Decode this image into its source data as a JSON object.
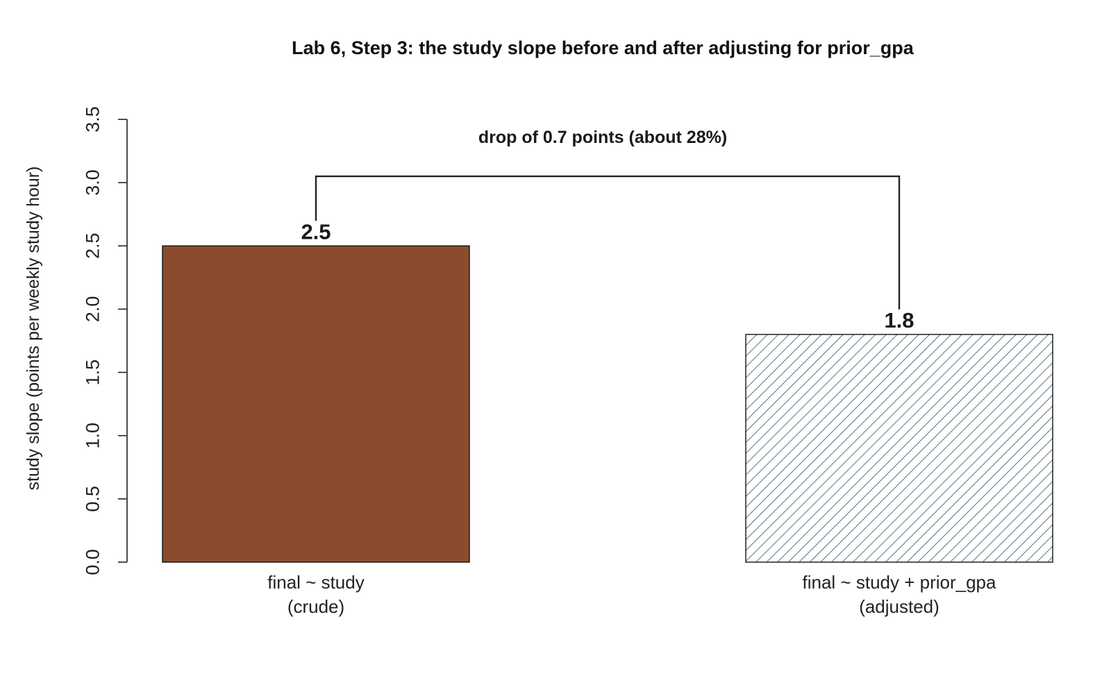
{
  "chart_data": {
    "type": "bar",
    "title": "Lab 6, Step 3: the study slope before and after adjusting for prior_gpa",
    "ylabel": "study slope (points per weekly study hour)",
    "xlabel": "",
    "ylim": [
      0,
      3.5
    ],
    "yticks": [
      "0.0",
      "0.5",
      "1.0",
      "1.5",
      "2.0",
      "2.5",
      "3.0",
      "3.5"
    ],
    "ytick_values": [
      0,
      0.5,
      1.0,
      1.5,
      2.0,
      2.5,
      3.0,
      3.5
    ],
    "grid": false,
    "bars": [
      {
        "category_lines": [
          "final ~ study",
          "(crude)"
        ],
        "value": 2.5,
        "value_label": "2.5",
        "fill": "#8B4C2E",
        "pattern": "solid"
      },
      {
        "category_lines": [
          "final ~ study + prior_gpa",
          "(adjusted)"
        ],
        "value": 1.8,
        "value_label": "1.8",
        "fill": "#2F4F5F",
        "pattern": "diagonal-hatch"
      }
    ],
    "annotation": {
      "text": "drop of 0.7 points (about 28%)",
      "bracket_level": 3.05
    }
  }
}
